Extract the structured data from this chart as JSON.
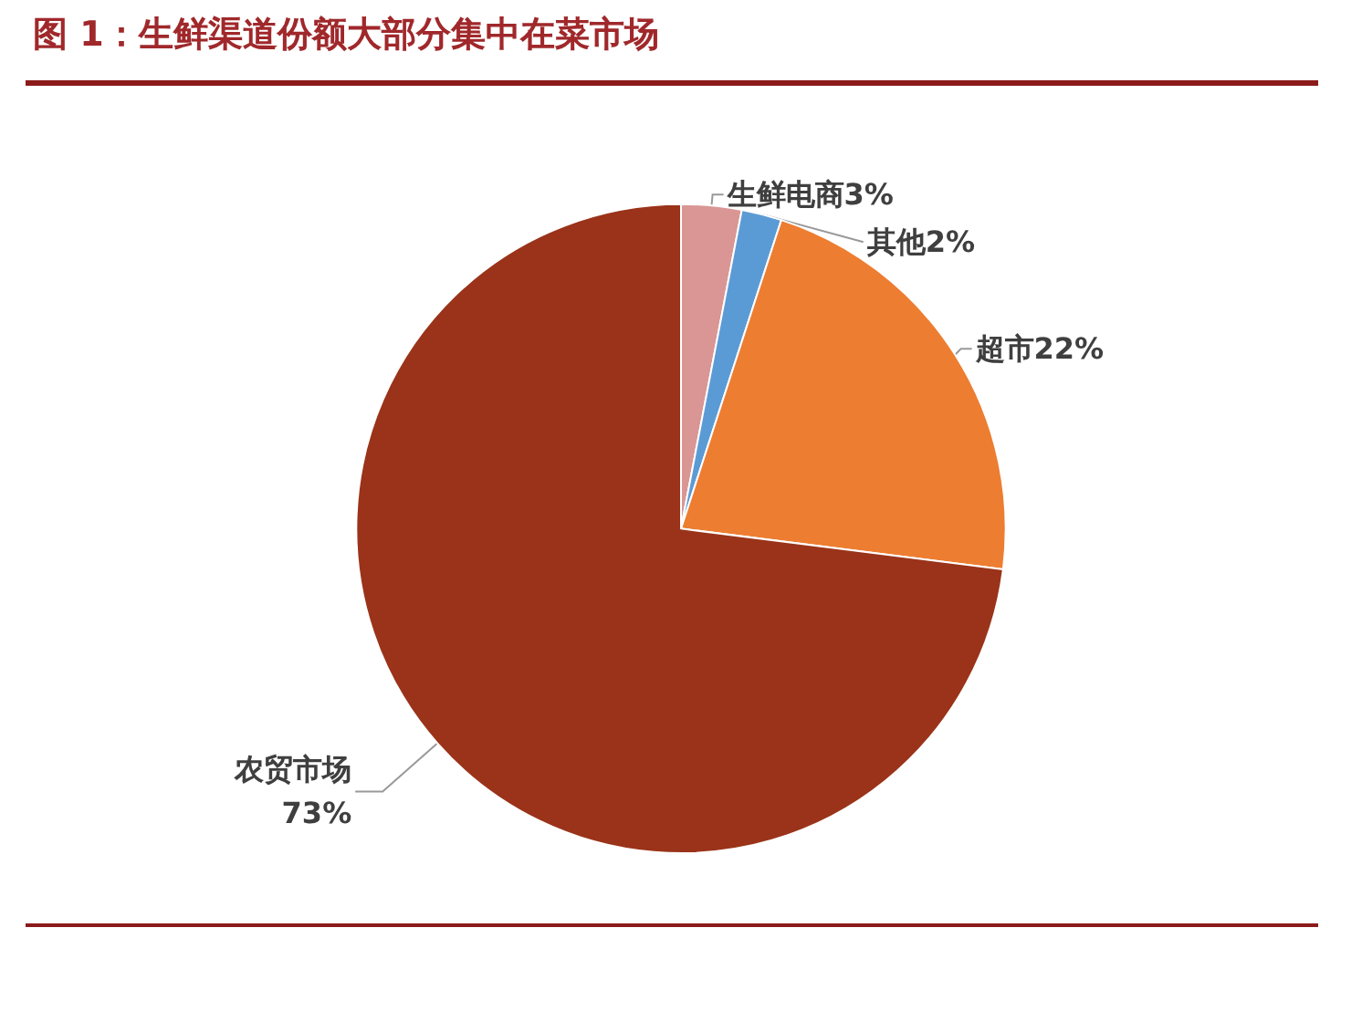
{
  "chart_data": {
    "type": "pie",
    "title": "图 1：生鲜渠道份额大部分集中在菜市场",
    "categories": [
      "生鲜电商",
      "其他",
      "超市",
      "农贸市场"
    ],
    "values": [
      3,
      2,
      22,
      73
    ],
    "value_labels": [
      "3%",
      "2%",
      "22%",
      "73%"
    ],
    "colors": [
      "#d99694",
      "#5b9bd5",
      "#ed7d31",
      "#9a3319"
    ],
    "legend": false
  }
}
